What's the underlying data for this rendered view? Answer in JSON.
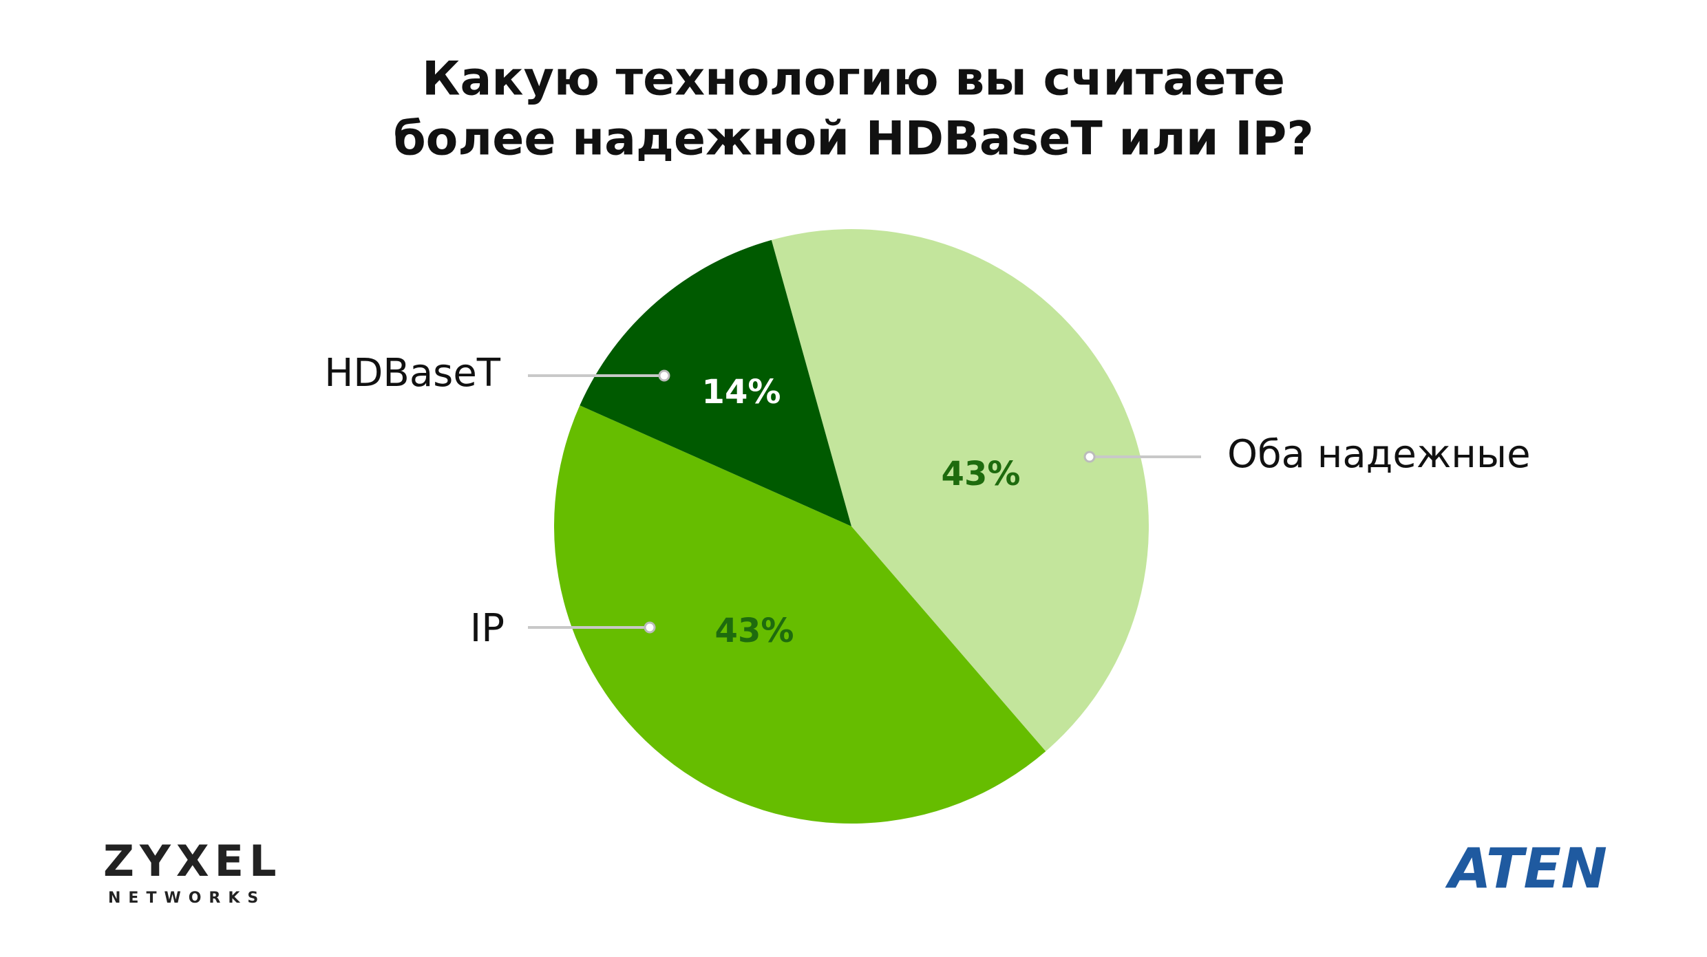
{
  "chart_data": {
    "type": "pie",
    "title": [
      "Какую технологию вы считаете",
      "более надежной HDBaseT или IP?"
    ],
    "categories": [
      "Оба надежные",
      "IP",
      "HDBaseT"
    ],
    "values": [
      43,
      43,
      14
    ],
    "value_labels": [
      "43%",
      "43%",
      "14%"
    ],
    "colors": [
      "#c3e59c",
      "#66bd00",
      "#005a00"
    ],
    "label_colors": [
      "#1e6b0e",
      "#1e6b0e",
      "#ffffff"
    ]
  },
  "logos": {
    "left": "ZYXEL",
    "left_sub": "NETWORKS",
    "right": "ATEN"
  }
}
